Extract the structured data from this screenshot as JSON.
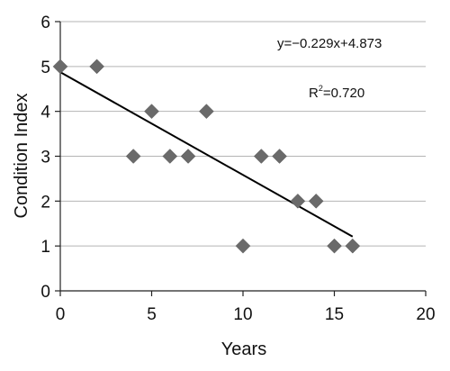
{
  "chart_data": {
    "type": "scatter",
    "xlabel": "Years",
    "ylabel": "Condition Index",
    "xlim": [
      0,
      20
    ],
    "ylim": [
      0,
      6
    ],
    "x_ticks": [
      0,
      5,
      10,
      15,
      20
    ],
    "y_ticks": [
      0,
      1,
      2,
      3,
      4,
      5,
      6
    ],
    "grid": "horizontal",
    "points": [
      {
        "x": 0,
        "y": 5
      },
      {
        "x": 2,
        "y": 5
      },
      {
        "x": 4,
        "y": 3
      },
      {
        "x": 5,
        "y": 4
      },
      {
        "x": 6,
        "y": 3
      },
      {
        "x": 7,
        "y": 3
      },
      {
        "x": 8,
        "y": 4
      },
      {
        "x": 10,
        "y": 1
      },
      {
        "x": 11,
        "y": 3
      },
      {
        "x": 12,
        "y": 3
      },
      {
        "x": 13,
        "y": 2
      },
      {
        "x": 14,
        "y": 2
      },
      {
        "x": 15,
        "y": 1
      },
      {
        "x": 16,
        "y": 1
      }
    ],
    "trendline": {
      "slope": -0.229,
      "intercept": 4.873,
      "x_range": [
        0,
        16
      ],
      "equation": "y=−0.229x+4.873",
      "r2_label": "R",
      "r2_sup": "2",
      "r2_value": "=0.720"
    },
    "colors": {
      "marker": "#6a6a6a",
      "trendline": "#000000",
      "grid": "#b4b4b4"
    }
  }
}
